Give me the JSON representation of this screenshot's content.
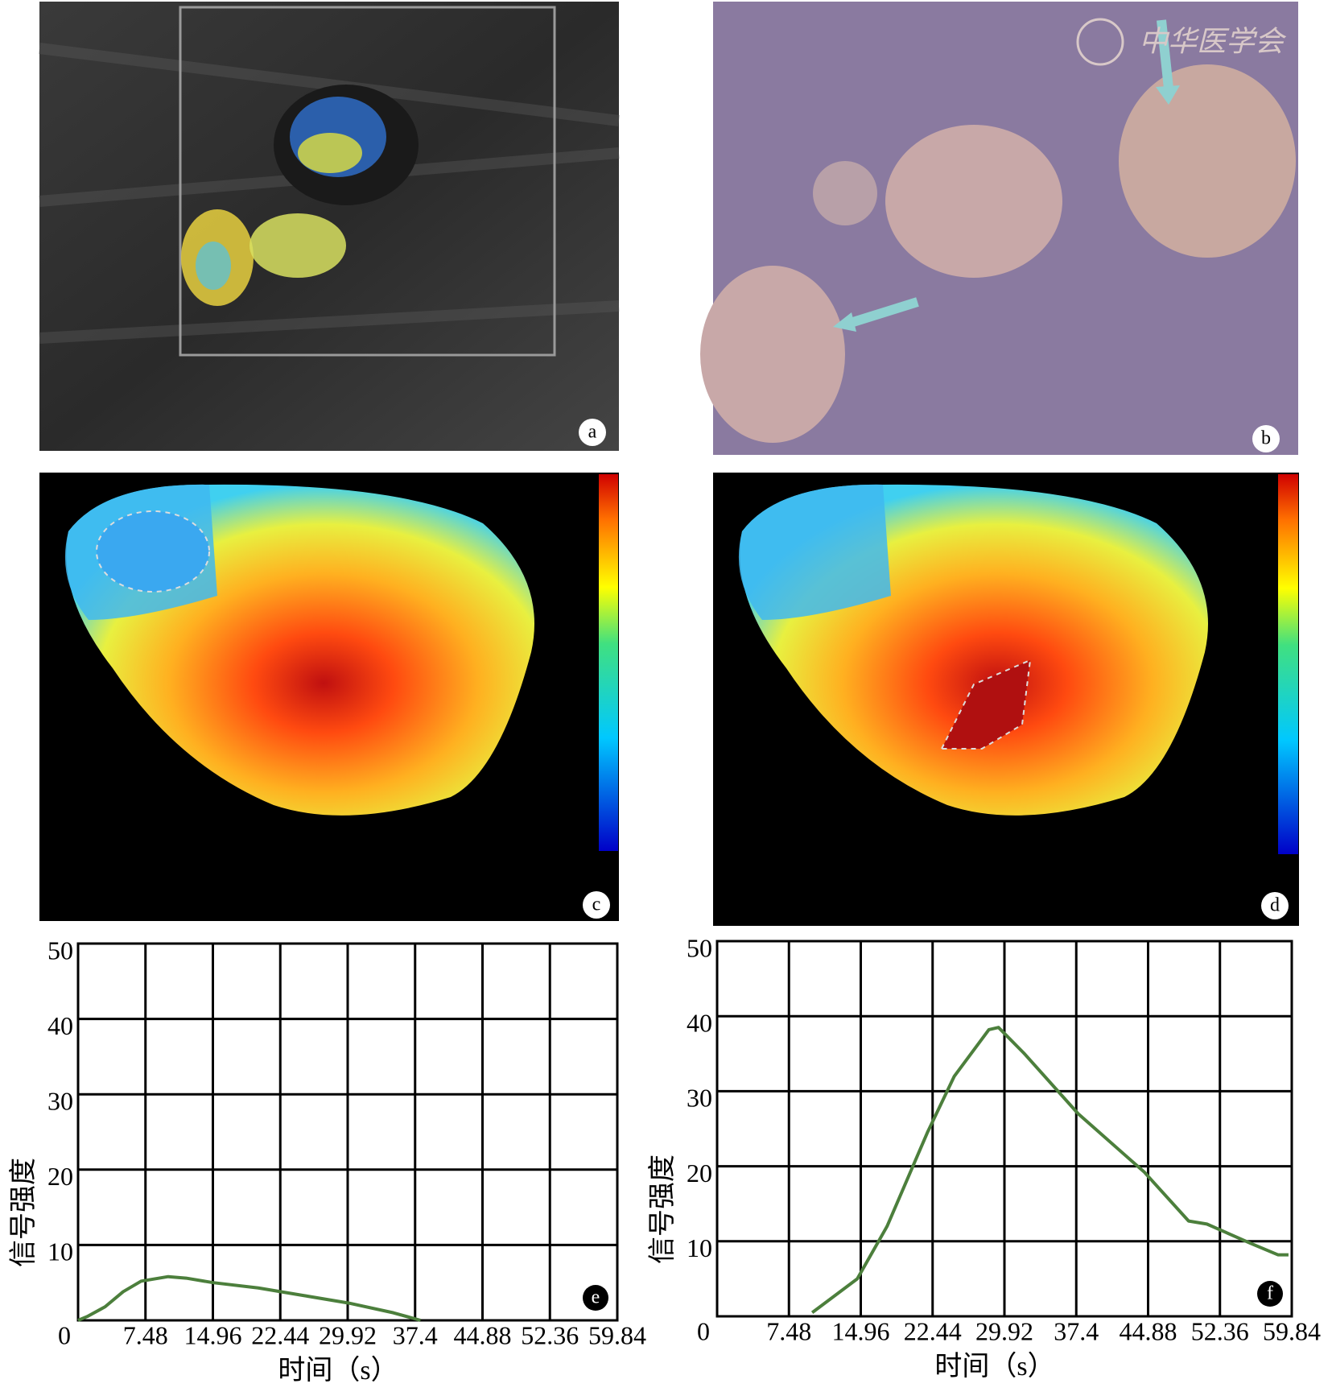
{
  "panels": [
    {
      "label": "a"
    },
    {
      "label": "b",
      "watermark": "中华医学会"
    },
    {
      "label": "c"
    },
    {
      "label": "d"
    }
  ],
  "chart_data": [
    {
      "type": "line",
      "panel_label": "e",
      "x_label": "时间（s）",
      "y_label": "信号强度",
      "xlim": [
        0,
        59.84
      ],
      "ylim": [
        0,
        50
      ],
      "xticks": [
        0,
        7.48,
        14.96,
        22.44,
        29.92,
        37.4,
        44.88,
        52.36,
        59.84
      ],
      "yticks": [
        10,
        20,
        30,
        40,
        50
      ],
      "grid": true,
      "series": [
        {
          "color": "#4c7f3c",
          "x": [
            0,
            1,
            3,
            5,
            7,
            10,
            12,
            15,
            20,
            25,
            30,
            35,
            38
          ],
          "values": [
            0,
            0.5,
            1.8,
            3.8,
            5.2,
            5.8,
            5.6,
            5.0,
            4.3,
            3.3,
            2.3,
            1.0,
            0
          ]
        }
      ]
    },
    {
      "type": "line",
      "panel_label": "f",
      "x_label": "时间（s）",
      "y_label": "信号强度",
      "xlim": [
        0,
        59.84
      ],
      "ylim": [
        0,
        50
      ],
      "xticks": [
        0,
        7.48,
        14.96,
        22.44,
        29.92,
        37.4,
        44.88,
        52.36,
        59.84
      ],
      "yticks": [
        10,
        20,
        30,
        40,
        50
      ],
      "grid": true,
      "series": [
        {
          "color": "#4c7f3c",
          "x": [
            9.9,
            14.6,
            17.7,
            21.9,
            24.7,
            28.3,
            29.3,
            32,
            37.6,
            44.5,
            49.1,
            51,
            55.6,
            58.4,
            59.5
          ],
          "values": [
            0.5,
            5,
            12,
            24.5,
            32,
            38.2,
            38.5,
            35,
            27,
            19.2,
            12.7,
            12.3,
            9.7,
            8.2,
            8.2
          ]
        }
      ]
    }
  ]
}
